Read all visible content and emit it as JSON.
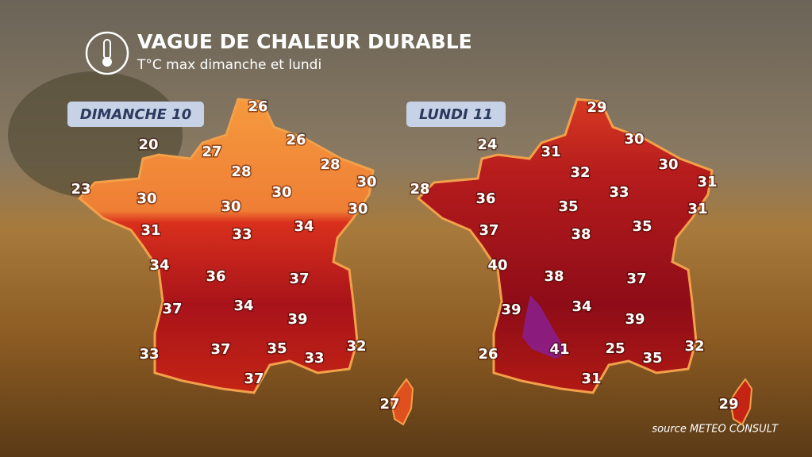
{
  "header": {
    "title": "VAGUE DE CHALEUR DURABLE",
    "subtitle": "T°C max dimanche et lundi"
  },
  "maps": [
    {
      "label": "DIMANCHE 10",
      "temperatures": [
        26,
        20,
        27,
        26,
        28,
        23,
        30,
        28,
        30,
        30,
        30,
        30,
        31,
        33,
        34,
        34,
        36,
        37,
        37,
        34,
        39,
        33,
        37,
        35,
        33,
        32,
        37,
        27
      ]
    },
    {
      "label": "LUNDI 11",
      "temperatures": [
        29,
        24,
        31,
        30,
        30,
        32,
        31,
        28,
        36,
        33,
        35,
        31,
        37,
        38,
        35,
        40,
        38,
        37,
        39,
        34,
        39,
        26,
        41,
        25,
        35,
        32,
        31,
        29
      ]
    }
  ],
  "source": "source METEO CONSULT"
}
